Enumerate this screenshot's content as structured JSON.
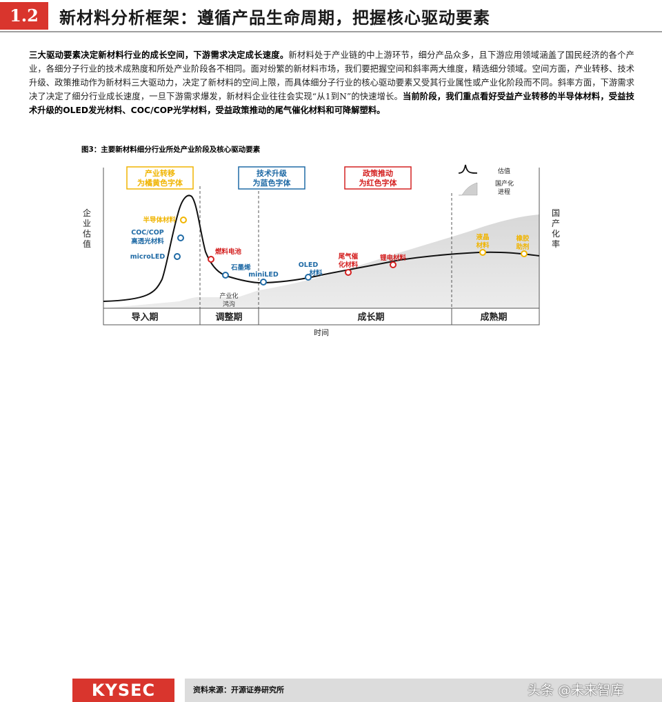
{
  "header": {
    "section": "1.2",
    "title": "新材料分析框架：遵循产品生命周期，把握核心驱动要素"
  },
  "body": {
    "lead_bold": "三大驱动要素决定新材料行业的成长空间，下游需求决定成长速度。",
    "text": "新材料处于产业链的中上游环节，细分产品众多，且下游应用领域涵盖了国民经济的各个产业，各细分子行业的技术成熟度和所处产业阶段各不相同。面对纷繁的新材料市场，我们要把握空间和斜率两大维度，精选细分领域。空间方面，产业转移、技术升级、政策推动作为新材料三大驱动力，决定了新材料的空间上限，而具体细分子行业的核心驱动要素又受其行业属性或产业化阶段而不同。斜率方面，下游需求决了决定了细分行业成长速度，一旦下游需求爆发，新材料企业往往会实现“从1到N”的快速增长。",
    "tail_bold": "当前阶段，我们重点看好受益产业转移的半导体材料，受益技术升级的OLED发光材料、COC/COP光学材料，受益政策推动的尾气催化材料和可降解塑料。"
  },
  "figure": {
    "caption": "图3：主要新材料细分行业所处产业阶段及核心驱动要素",
    "legend_boxes": [
      {
        "id": "yellow",
        "line1": "产业转移",
        "line2": "为橘黄色字体",
        "color": "#f0b400"
      },
      {
        "id": "blue",
        "line1": "技术升级",
        "line2": "为蓝色字体",
        "color": "#1f6aa5"
      },
      {
        "id": "red",
        "line1": "政策推动",
        "line2": "为红色字体",
        "color": "#d42020"
      }
    ],
    "key": {
      "valuation": "估值",
      "industrialization_l1": "国产化",
      "industrialization_l2": "进程"
    },
    "y_left": [
      "企",
      "业",
      "估",
      "值"
    ],
    "y_right": [
      "国",
      "产",
      "化",
      "率"
    ],
    "phases": [
      "导入期",
      "调整期",
      "成长期",
      "成熟期"
    ],
    "x_axis": "时间",
    "trough_l1": "产业化",
    "trough_l2": "鸿沟",
    "materials": [
      {
        "name": "半导体材料",
        "color": "#f0b400"
      },
      {
        "name": "COC/COP",
        "color": "#1f6aa5"
      },
      {
        "name": "高透光材料",
        "color": "#1f6aa5"
      },
      {
        "name": "microLED",
        "color": "#1f6aa5"
      },
      {
        "name": "燃料电池",
        "color": "#d42020"
      },
      {
        "name": "石墨烯",
        "color": "#1f6aa5"
      },
      {
        "name": "miniLED",
        "color": "#1f6aa5"
      },
      {
        "name": "OLED",
        "color": "#1f6aa5"
      },
      {
        "name": "材料",
        "color": "#1f6aa5"
      },
      {
        "name": "尾气催",
        "color": "#d42020"
      },
      {
        "name": "化材料",
        "color": "#d42020"
      },
      {
        "name": "锂电材料",
        "color": "#d42020"
      },
      {
        "name": "液晶",
        "color": "#f0b400"
      },
      {
        "name": "材料",
        "color": "#f0b400"
      },
      {
        "name": "橡胶",
        "color": "#f0b400"
      },
      {
        "name": "助剂",
        "color": "#f0b400"
      }
    ]
  },
  "footer": {
    "logo": "KYSEC",
    "source": "资料来源：开源证券研究所",
    "watermark": "头条 @未来智库"
  }
}
